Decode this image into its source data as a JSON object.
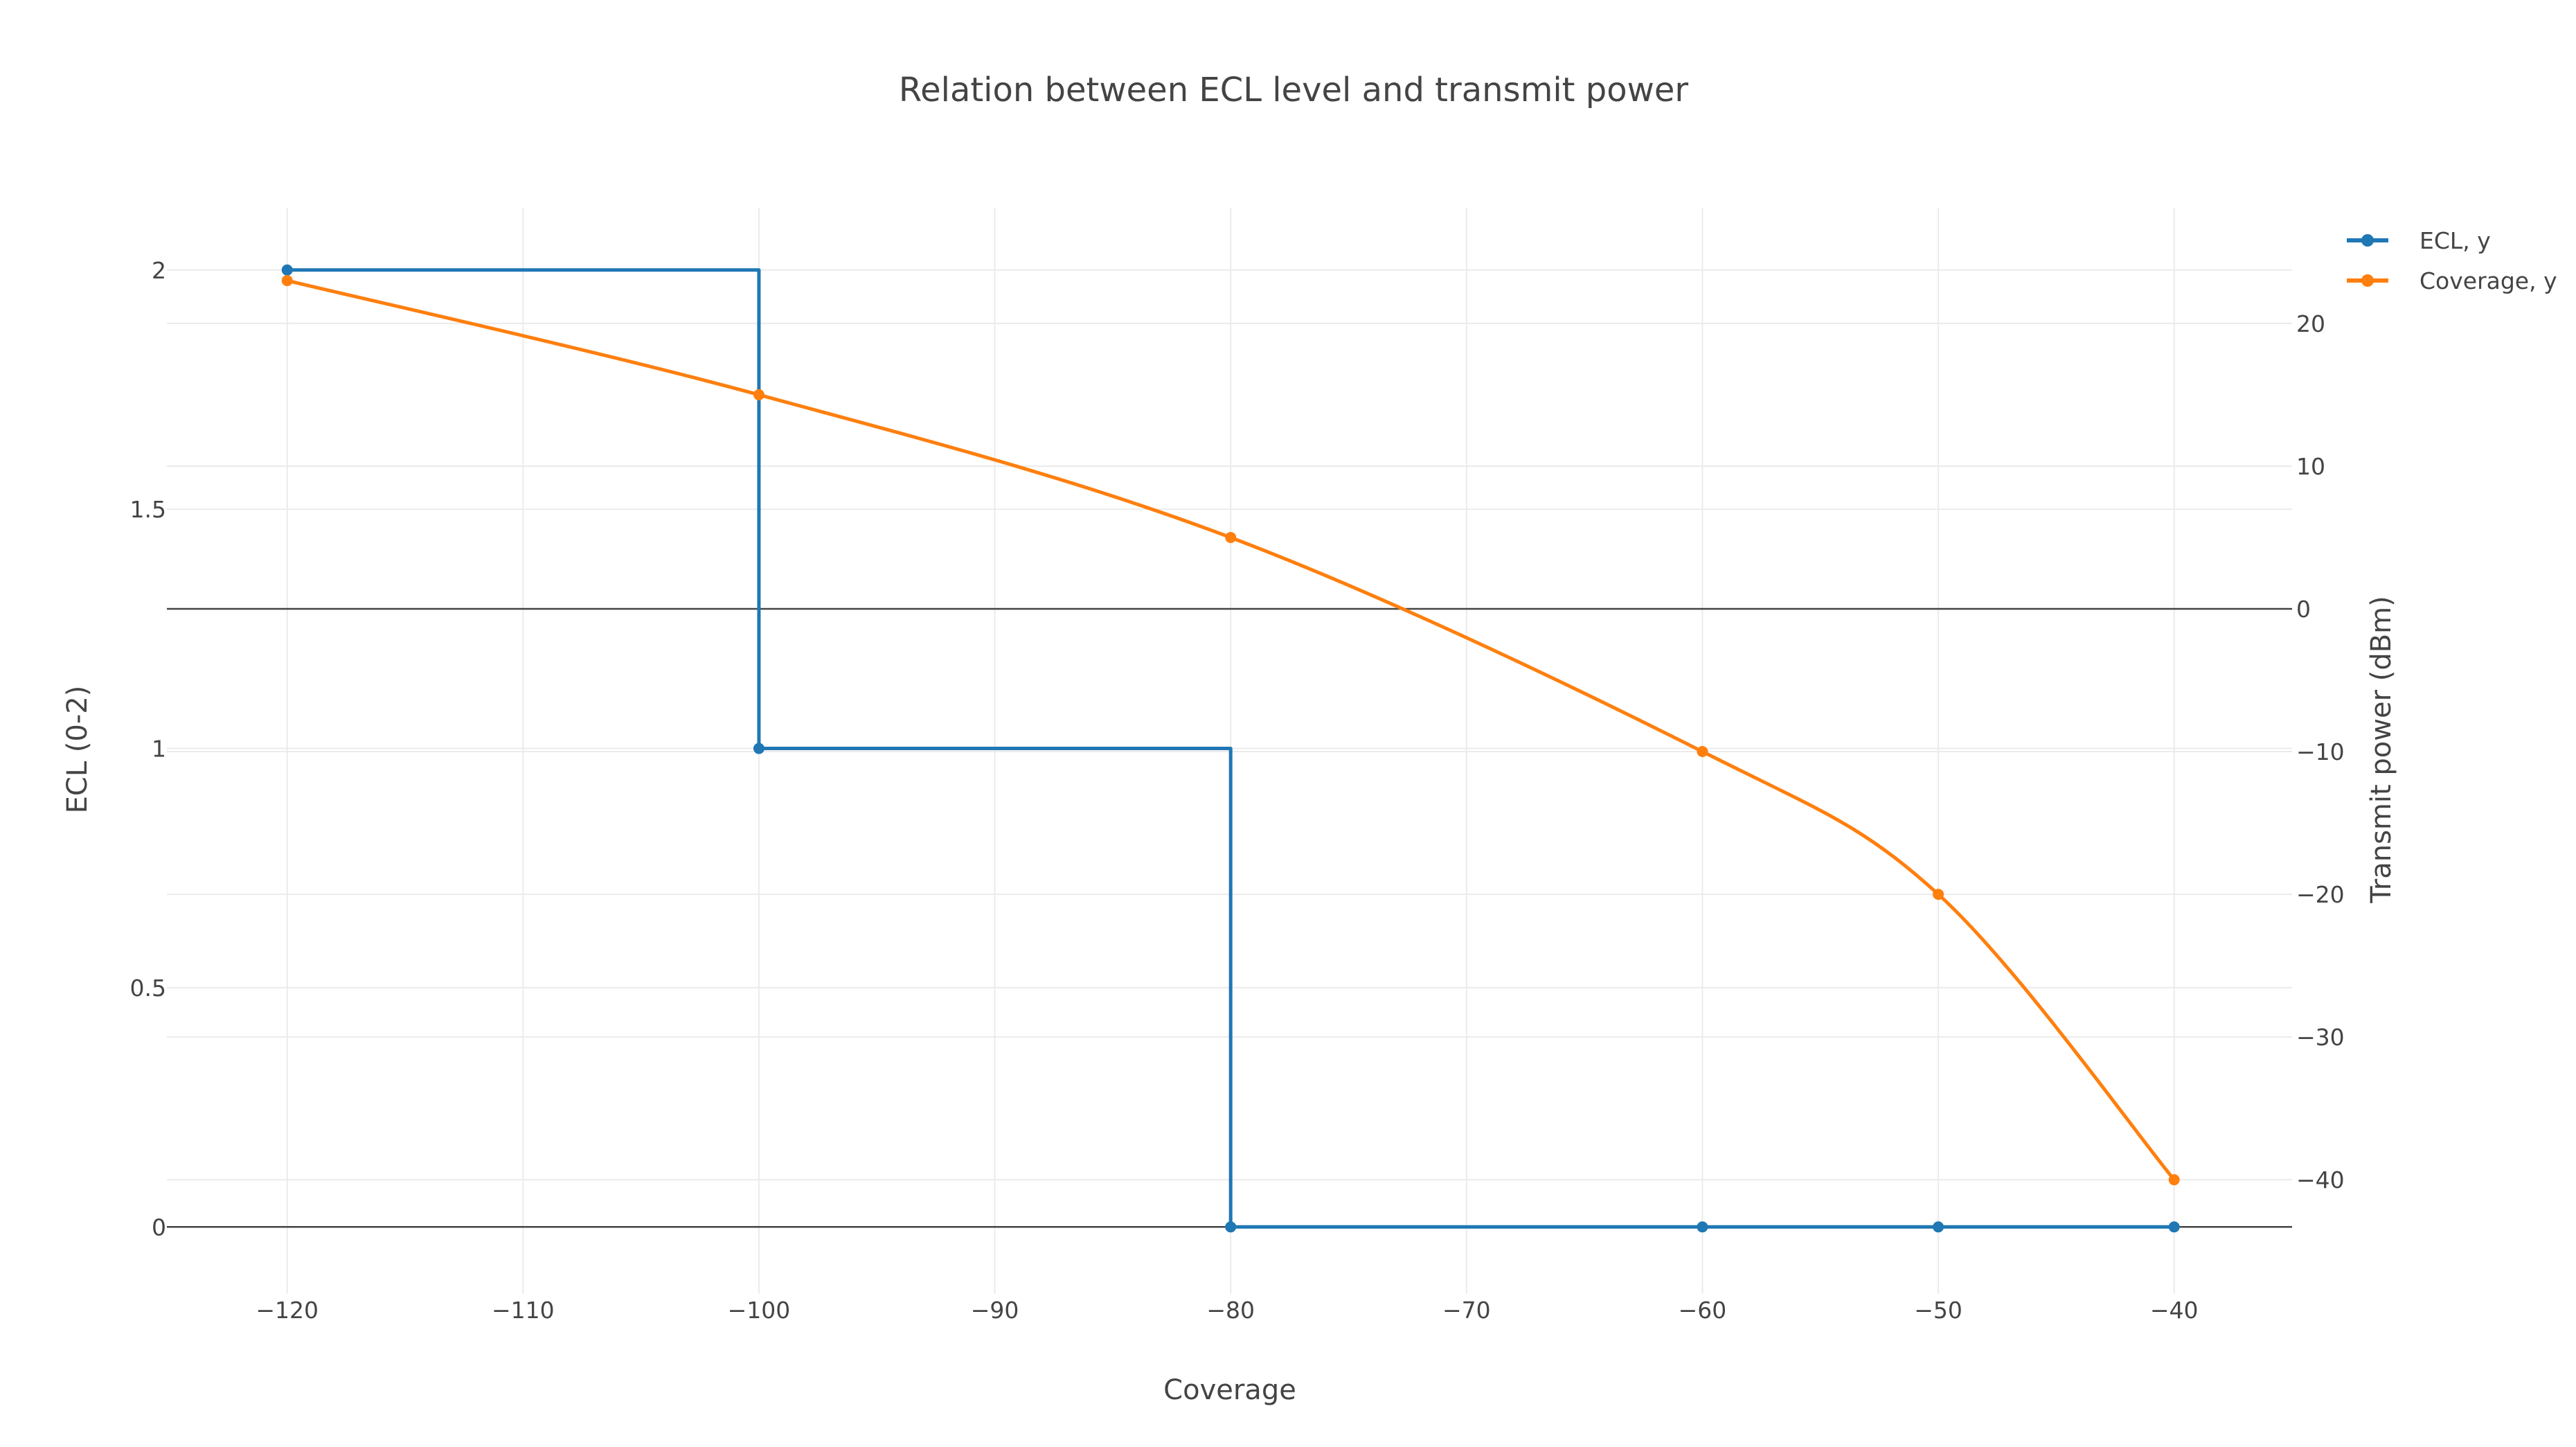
{
  "chart_data": {
    "type": "line",
    "title": "Relation between ECL level and transmit power",
    "xlabel": "Coverage",
    "ylabel": "ECL (0-2)",
    "y2label": "Transmit power (dBm)",
    "xlim": [
      -125.1,
      -35.0
    ],
    "ylim": [
      -0.14,
      2.13
    ],
    "y2lim": [
      -48.0,
      28.1
    ],
    "x_ticks": [
      -120,
      -110,
      -100,
      -90,
      -80,
      -70,
      -60,
      -50,
      -40
    ],
    "x_tick_labels": [
      "−120",
      "−110",
      "−100",
      "−90",
      "−80",
      "−70",
      "−60",
      "−50",
      "−40"
    ],
    "y_ticks": [
      0,
      0.5,
      1,
      1.5,
      2
    ],
    "y_tick_labels": [
      "0",
      "0.5",
      "1",
      "1.5",
      "2"
    ],
    "y2_ticks": [
      -40,
      -30,
      -20,
      -10,
      0,
      10,
      20
    ],
    "y2_tick_labels": [
      "−40",
      "−30",
      "−20",
      "−10",
      "0",
      "10",
      "20"
    ],
    "grid": true,
    "legend_position": "top-right",
    "series": [
      {
        "name": "ECL, y",
        "axis": "y",
        "line_shape": "step",
        "color": "#1f77b4",
        "x": [
          -120,
          -100,
          -80,
          -60,
          -50,
          -40
        ],
        "y": [
          2,
          1,
          0,
          0,
          0,
          0
        ]
      },
      {
        "name": "Coverage, y",
        "axis": "y2",
        "line_shape": "spline",
        "color": "#ff7f0e",
        "x": [
          -120,
          -100,
          -80,
          -60,
          -50,
          -40
        ],
        "y": [
          23,
          15,
          5,
          -10,
          -20,
          -40
        ]
      }
    ]
  }
}
